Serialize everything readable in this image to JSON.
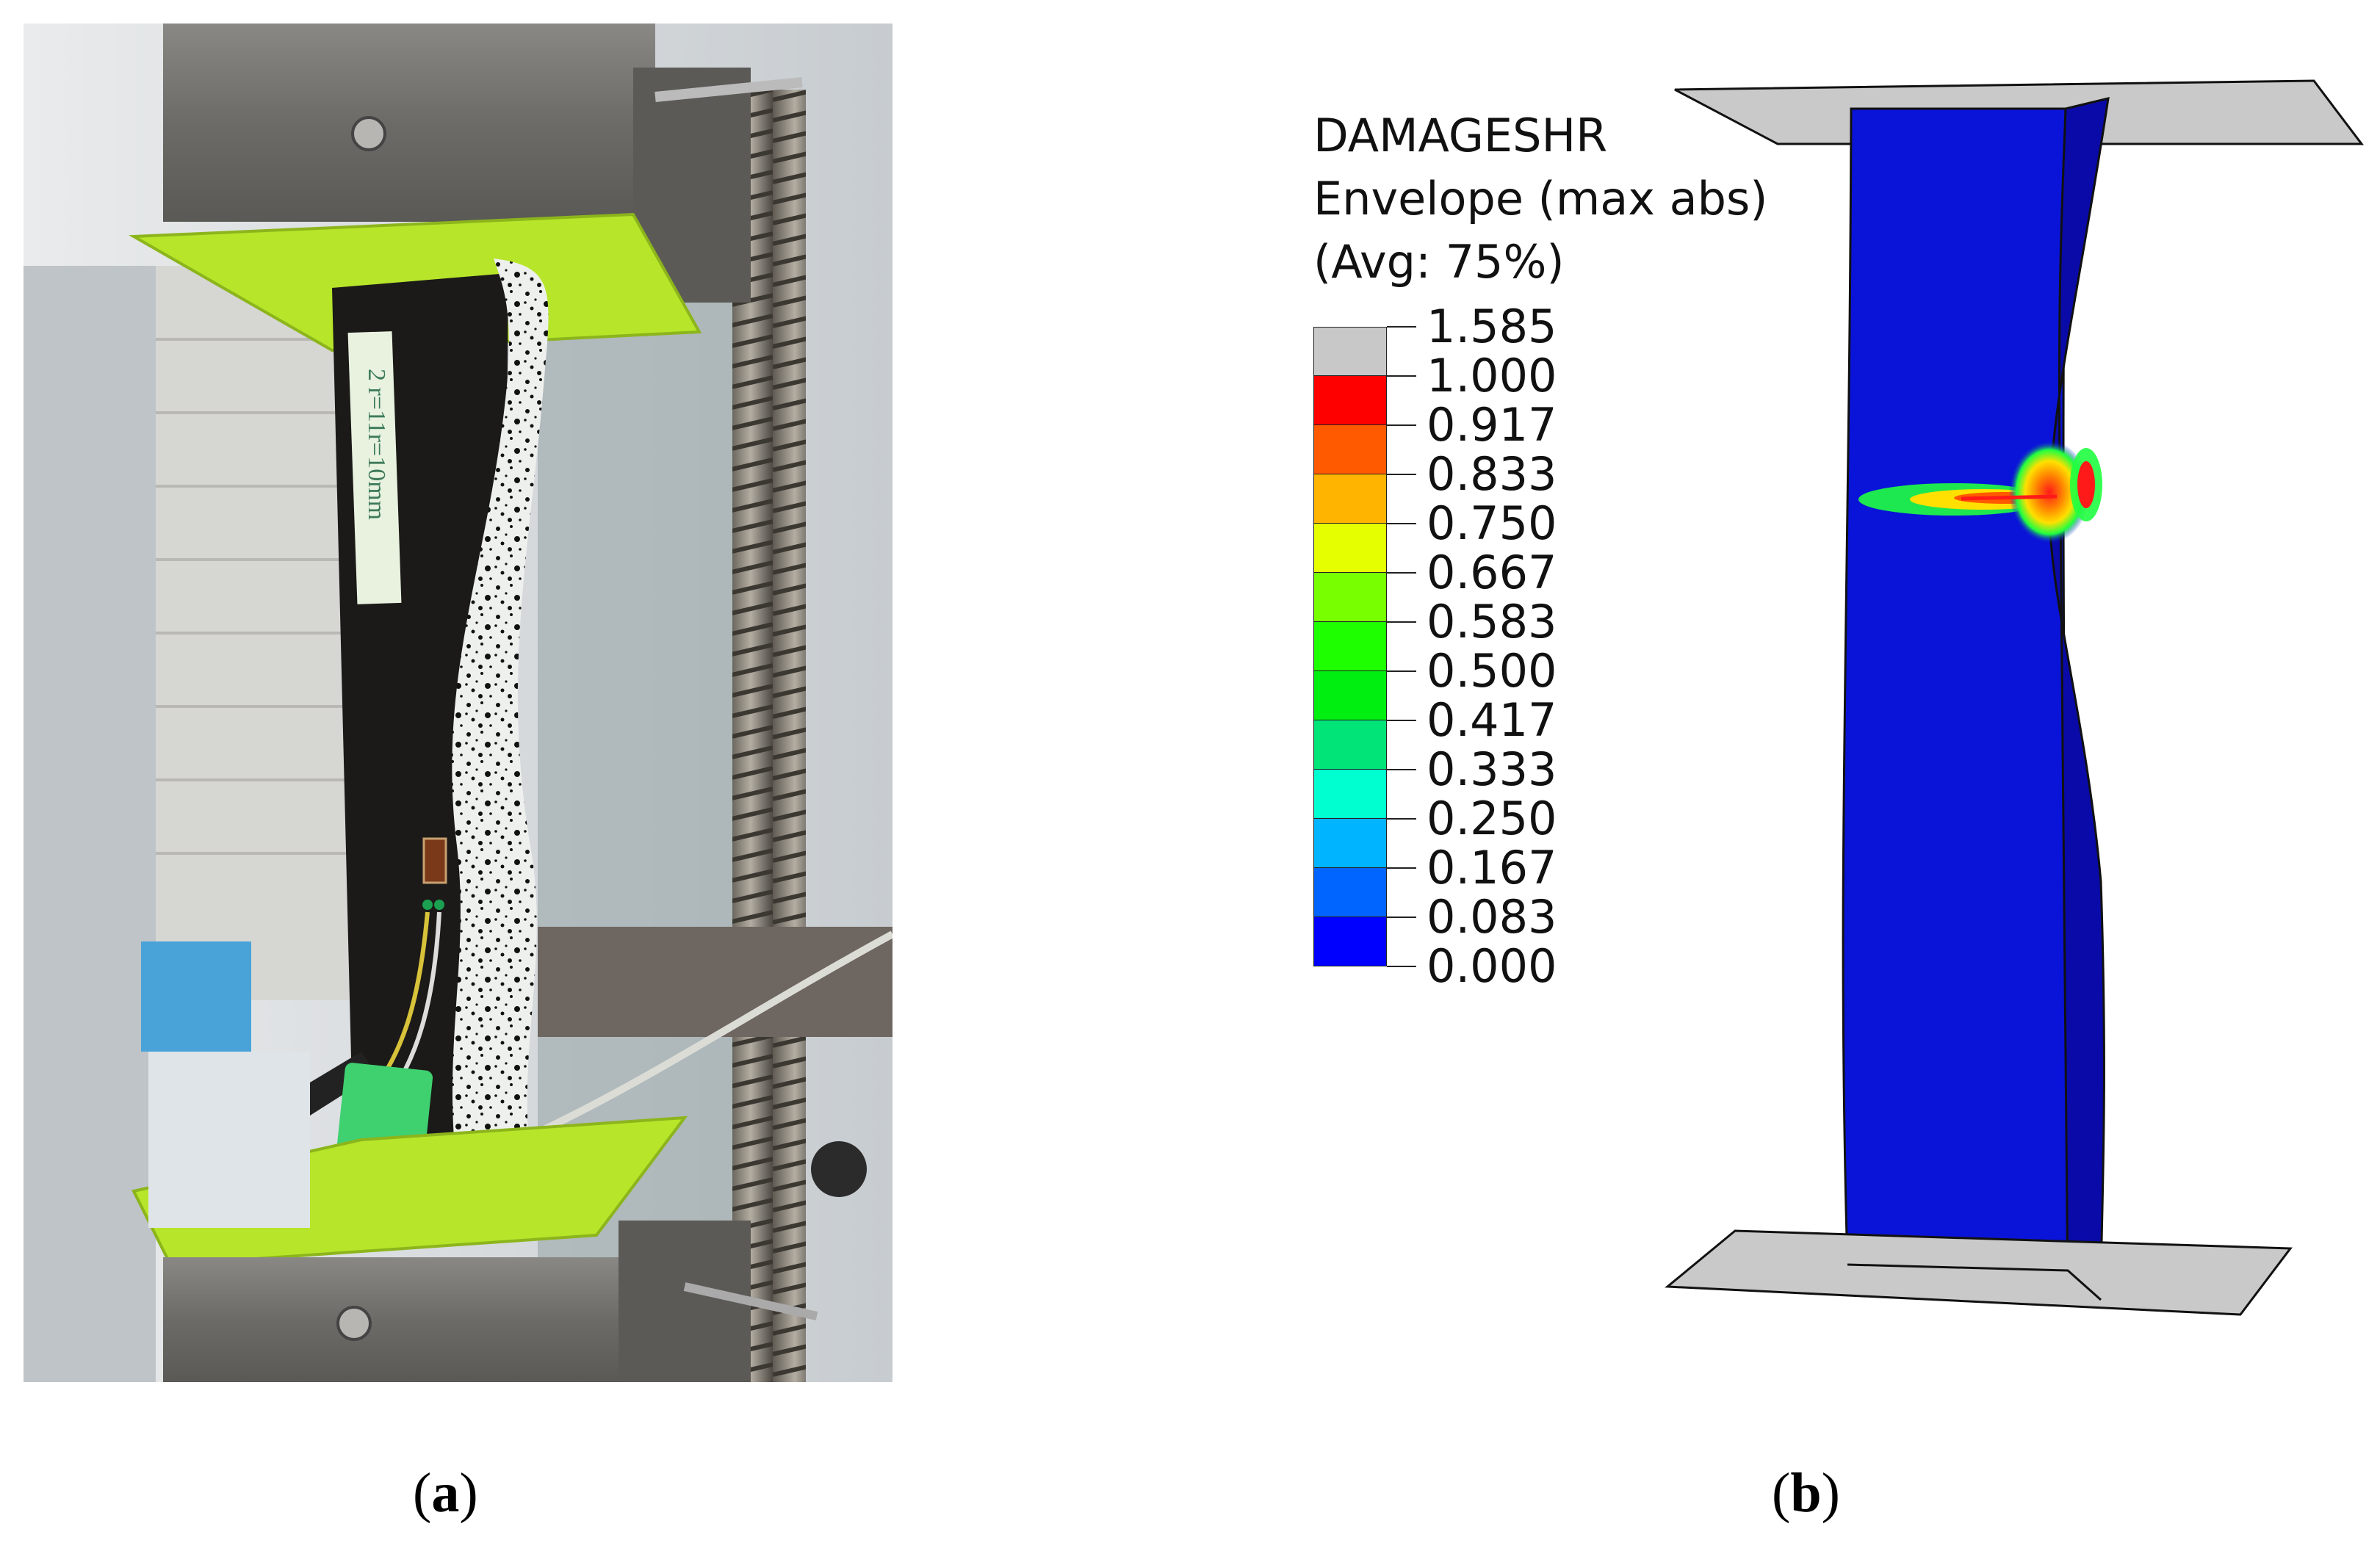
{
  "figure": {
    "captions": [
      {
        "label": "a",
        "text_open": "(",
        "text_close": ")"
      },
      {
        "label": "b",
        "text_open": "(",
        "text_close": ")"
      }
    ],
    "photo": {
      "tag_text": "2 r=11r=10mm",
      "colors": {
        "grip_plate": "#b7e52a",
        "specimen": "#1b1a18",
        "speckle": "#eef0ee",
        "steel": "#7b7975"
      }
    },
    "legend": {
      "title_lines": [
        "DAMAGESHR",
        "Envelope (max abs)",
        "(Avg: 75%)"
      ],
      "tick_labels": [
        "1.585",
        "1.000",
        "0.917",
        "0.833",
        "0.750",
        "0.667",
        "0.583",
        "0.500",
        "0.417",
        "0.333",
        "0.250",
        "0.167",
        "0.083",
        "0.000"
      ],
      "colors": [
        "#c8c8c8",
        "#ff0000",
        "#ff5a00",
        "#ffb400",
        "#e6ff00",
        "#78ff00",
        "#1eff00",
        "#00ee10",
        "#00e478",
        "#00ffd0",
        "#00b4ff",
        "#0064ff",
        "#0000ff"
      ]
    },
    "fe_model": {
      "colors": {
        "base": "#0a14d8",
        "flange": "#0a0aa8",
        "plate": "#c9c9c9",
        "damage_hot": "#ff1a1a",
        "damage_mid": "#ffd000",
        "damage_low": "#20ff40"
      }
    }
  }
}
